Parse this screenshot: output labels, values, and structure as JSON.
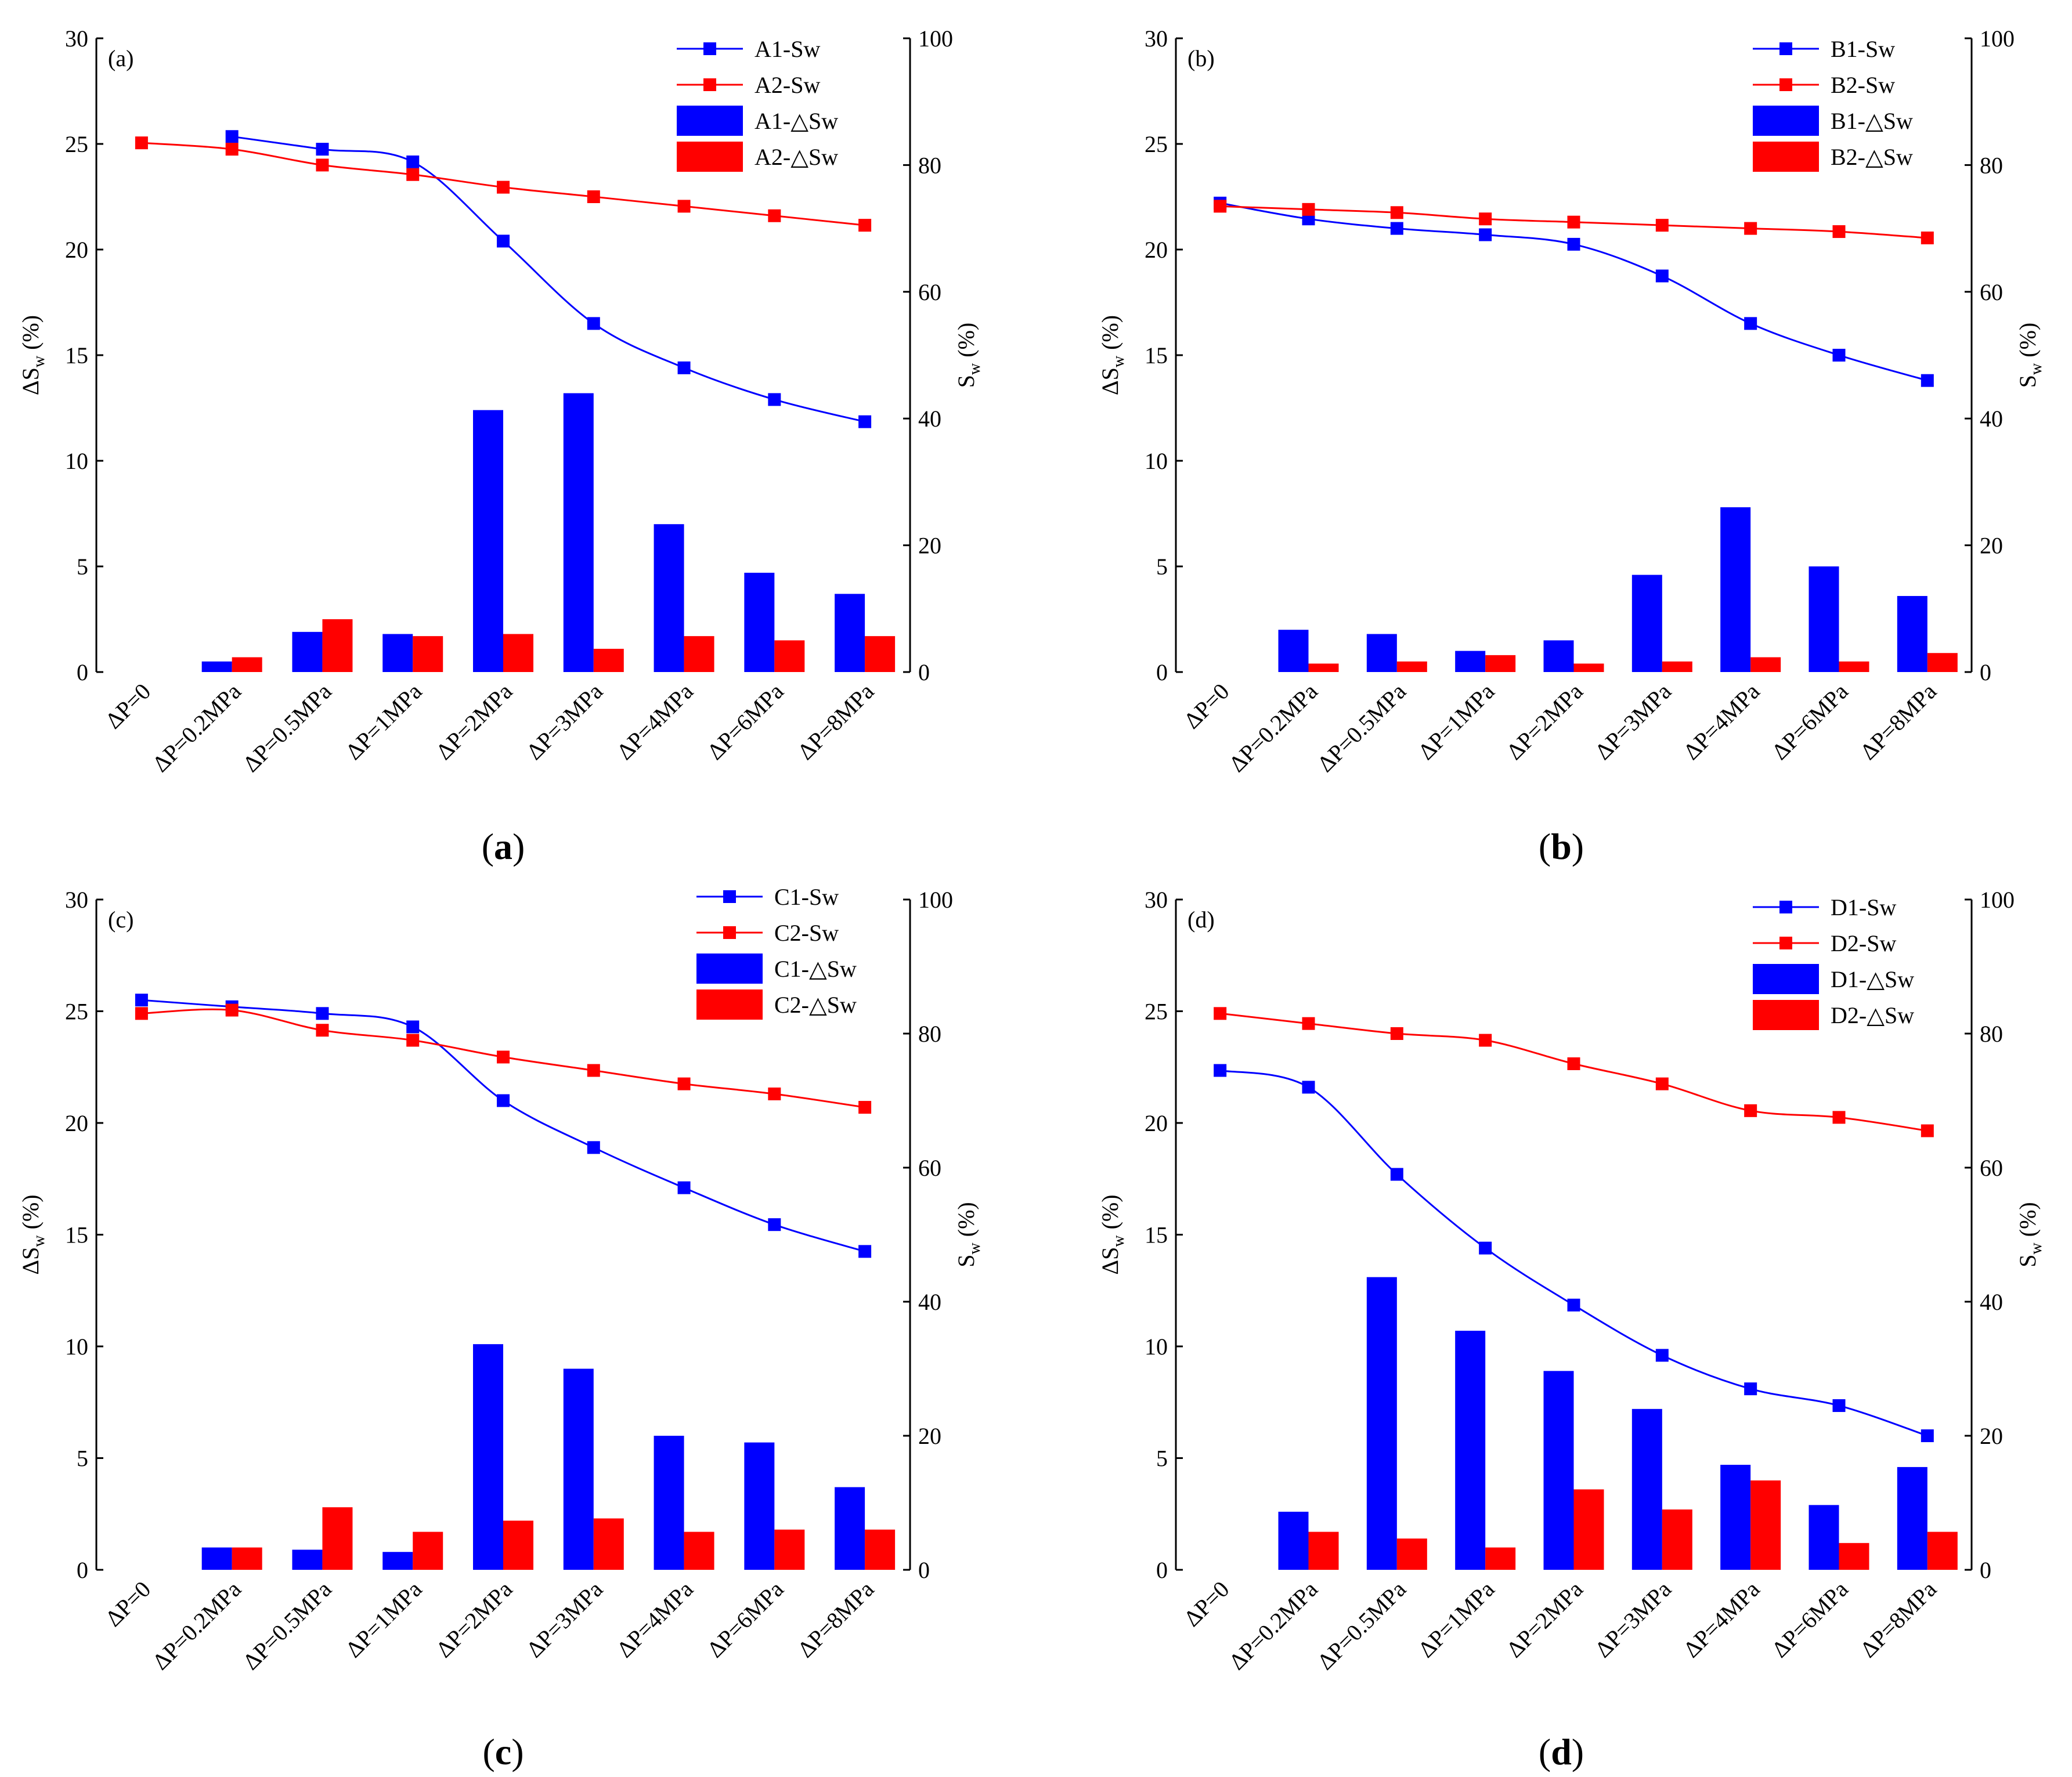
{
  "colors": {
    "series1": "#0000ff",
    "series2": "#ff0000",
    "axis": "#000000"
  },
  "chart_data": [
    {
      "type": "bar+line",
      "panel_tag": "(a)",
      "caption_paren_open": "(",
      "caption_letter": "a",
      "caption_paren_close": ")",
      "categories": [
        "ΔP=0",
        "ΔP=0.2MPa",
        "ΔP=0.5MPa",
        "ΔP=1MPa",
        "ΔP=2MPa",
        "ΔP=3MPa",
        "ΔP=4MPa",
        "ΔP=6MPa",
        "ΔP=8MPa"
      ],
      "ylabel_left": {
        "prefix": "ΔS",
        "sub": "w",
        "suffix": " (%)"
      },
      "ylabel_right": {
        "prefix": "S",
        "sub": "w",
        "suffix": " (%)"
      },
      "ylim_left": [
        0,
        30
      ],
      "yticks_left": [
        "0",
        "5",
        "10",
        "15",
        "20",
        "25",
        "30"
      ],
      "ylim_right": [
        0,
        100
      ],
      "yticks_right": [
        "0",
        "20",
        "40",
        "60",
        "80",
        "100"
      ],
      "legend": [
        "A1-Sw",
        "A2-Sw",
        "A1-△Sw",
        "A2-△Sw"
      ],
      "lines": [
        {
          "name": "A1-Sw",
          "values": [
            null,
            84.5,
            82.5,
            80.5,
            68,
            55,
            48,
            43,
            39.5
          ]
        },
        {
          "name": "A2-Sw",
          "values": [
            83.5,
            82.5,
            80,
            78.5,
            76.5,
            75,
            73.5,
            72,
            70.5
          ]
        }
      ],
      "bars": [
        {
          "name": "A1-△Sw",
          "values": [
            0,
            0.5,
            1.9,
            1.8,
            12.4,
            13.2,
            7.0,
            4.7,
            3.7
          ]
        },
        {
          "name": "A2-△Sw",
          "values": [
            0,
            0.7,
            2.5,
            1.7,
            1.8,
            1.1,
            1.7,
            1.5,
            1.7
          ]
        }
      ]
    },
    {
      "type": "bar+line",
      "panel_tag": "(b)",
      "caption_paren_open": "(",
      "caption_letter": "b",
      "caption_paren_close": ")",
      "categories": [
        "ΔP=0",
        "ΔP=0.2MPa",
        "ΔP=0.5MPa",
        "ΔP=1MPa",
        "ΔP=2MPa",
        "ΔP=3MPa",
        "ΔP=4MPa",
        "ΔP=6MPa",
        "ΔP=8MPa"
      ],
      "ylabel_left": {
        "prefix": "ΔS",
        "sub": "w",
        "suffix": " (%)"
      },
      "ylabel_right": {
        "prefix": "S",
        "sub": "w",
        "suffix": " (%)"
      },
      "ylim_left": [
        0,
        30
      ],
      "yticks_left": [
        "0",
        "5",
        "10",
        "15",
        "20",
        "25",
        "30"
      ],
      "ylim_right": [
        0,
        100
      ],
      "yticks_right": [
        "0",
        "20",
        "40",
        "60",
        "80",
        "100"
      ],
      "legend": [
        "B1-Sw",
        "B2-Sw",
        "B1-△Sw",
        "B2-△Sw"
      ],
      "lines": [
        {
          "name": "B1-Sw",
          "values": [
            74,
            71.5,
            70,
            69,
            67.5,
            62.5,
            55,
            50,
            46
          ]
        },
        {
          "name": "B2-Sw",
          "values": [
            73.5,
            73,
            72.5,
            71.5,
            71,
            70.5,
            70,
            69.5,
            68.5
          ]
        }
      ],
      "bars": [
        {
          "name": "B1-△Sw",
          "values": [
            0,
            2.0,
            1.8,
            1.0,
            1.5,
            4.6,
            7.8,
            5.0,
            3.6
          ]
        },
        {
          "name": "B2-△Sw",
          "values": [
            0,
            0.4,
            0.5,
            0.8,
            0.4,
            0.5,
            0.7,
            0.5,
            0.9
          ]
        }
      ]
    },
    {
      "type": "bar+line",
      "panel_tag": "(c)",
      "caption_paren_open": "(",
      "caption_letter": "c",
      "caption_paren_close": ")",
      "categories": [
        "ΔP=0",
        "ΔP=0.2MPa",
        "ΔP=0.5MPa",
        "ΔP=1MPa",
        "ΔP=2MPa",
        "ΔP=3MPa",
        "ΔP=4MPa",
        "ΔP=6MPa",
        "ΔP=8MPa"
      ],
      "ylabel_left": {
        "prefix": "ΔS",
        "sub": "w",
        "suffix": " (%)"
      },
      "ylabel_right": {
        "prefix": "S",
        "sub": "w",
        "suffix": " (%)"
      },
      "ylim_left": [
        0,
        30
      ],
      "yticks_left": [
        "0",
        "5",
        "10",
        "15",
        "20",
        "25",
        "30"
      ],
      "ylim_right": [
        0,
        100
      ],
      "yticks_right": [
        "0",
        "20",
        "40",
        "60",
        "80",
        "100"
      ],
      "legend": [
        "C1-Sw",
        "C2-Sw",
        "C1-△Sw",
        "C2-△Sw"
      ],
      "lines": [
        {
          "name": "C1-Sw",
          "values": [
            85,
            84,
            83,
            81,
            70,
            63,
            57,
            51.5,
            47.5
          ]
        },
        {
          "name": "C2-Sw",
          "values": [
            83,
            83.5,
            80.5,
            79,
            76.5,
            74.5,
            72.5,
            71,
            69
          ]
        }
      ],
      "bars": [
        {
          "name": "C1-△Sw",
          "values": [
            0,
            1.0,
            0.9,
            0.8,
            10.1,
            9.0,
            6.0,
            5.7,
            3.7
          ]
        },
        {
          "name": "C2-△Sw",
          "values": [
            0,
            1.0,
            2.8,
            1.7,
            2.2,
            2.3,
            1.7,
            1.8,
            1.8
          ]
        }
      ]
    },
    {
      "type": "bar+line",
      "panel_tag": "(d)",
      "caption_paren_open": "(",
      "caption_letter": "d",
      "caption_paren_close": ")",
      "categories": [
        "ΔP=0",
        "ΔP=0.2MPa",
        "ΔP=0.5MPa",
        "ΔP=1MPa",
        "ΔP=2MPa",
        "ΔP=3MPa",
        "ΔP=4MPa",
        "ΔP=6MPa",
        "ΔP=8MPa"
      ],
      "ylabel_left": {
        "prefix": "ΔS",
        "sub": "w",
        "suffix": " (%)"
      },
      "ylabel_right": {
        "prefix": "S",
        "sub": "w",
        "suffix": " (%)"
      },
      "ylim_left": [
        0,
        30
      ],
      "yticks_left": [
        "0",
        "5",
        "10",
        "15",
        "20",
        "25",
        "30"
      ],
      "ylim_right": [
        0,
        100
      ],
      "yticks_right": [
        "0",
        "20",
        "40",
        "60",
        "80",
        "100"
      ],
      "legend": [
        "D1-Sw",
        "D2-Sw",
        "D1-△Sw",
        "D2-△Sw"
      ],
      "lines": [
        {
          "name": "D1-Sw",
          "values": [
            74.5,
            72,
            59,
            48,
            39.5,
            32,
            27,
            24.5,
            20
          ]
        },
        {
          "name": "D2-Sw",
          "values": [
            83,
            81.5,
            80,
            79,
            75.5,
            72.5,
            68.5,
            67.5,
            65.5
          ]
        }
      ],
      "bars": [
        {
          "name": "D1-△Sw",
          "values": [
            0,
            2.6,
            13.1,
            10.7,
            8.9,
            7.2,
            4.7,
            2.9,
            4.6
          ]
        },
        {
          "name": "D2-△Sw",
          "values": [
            0,
            1.7,
            1.4,
            1.0,
            3.6,
            2.7,
            4.0,
            1.2,
            1.7
          ]
        }
      ]
    }
  ]
}
